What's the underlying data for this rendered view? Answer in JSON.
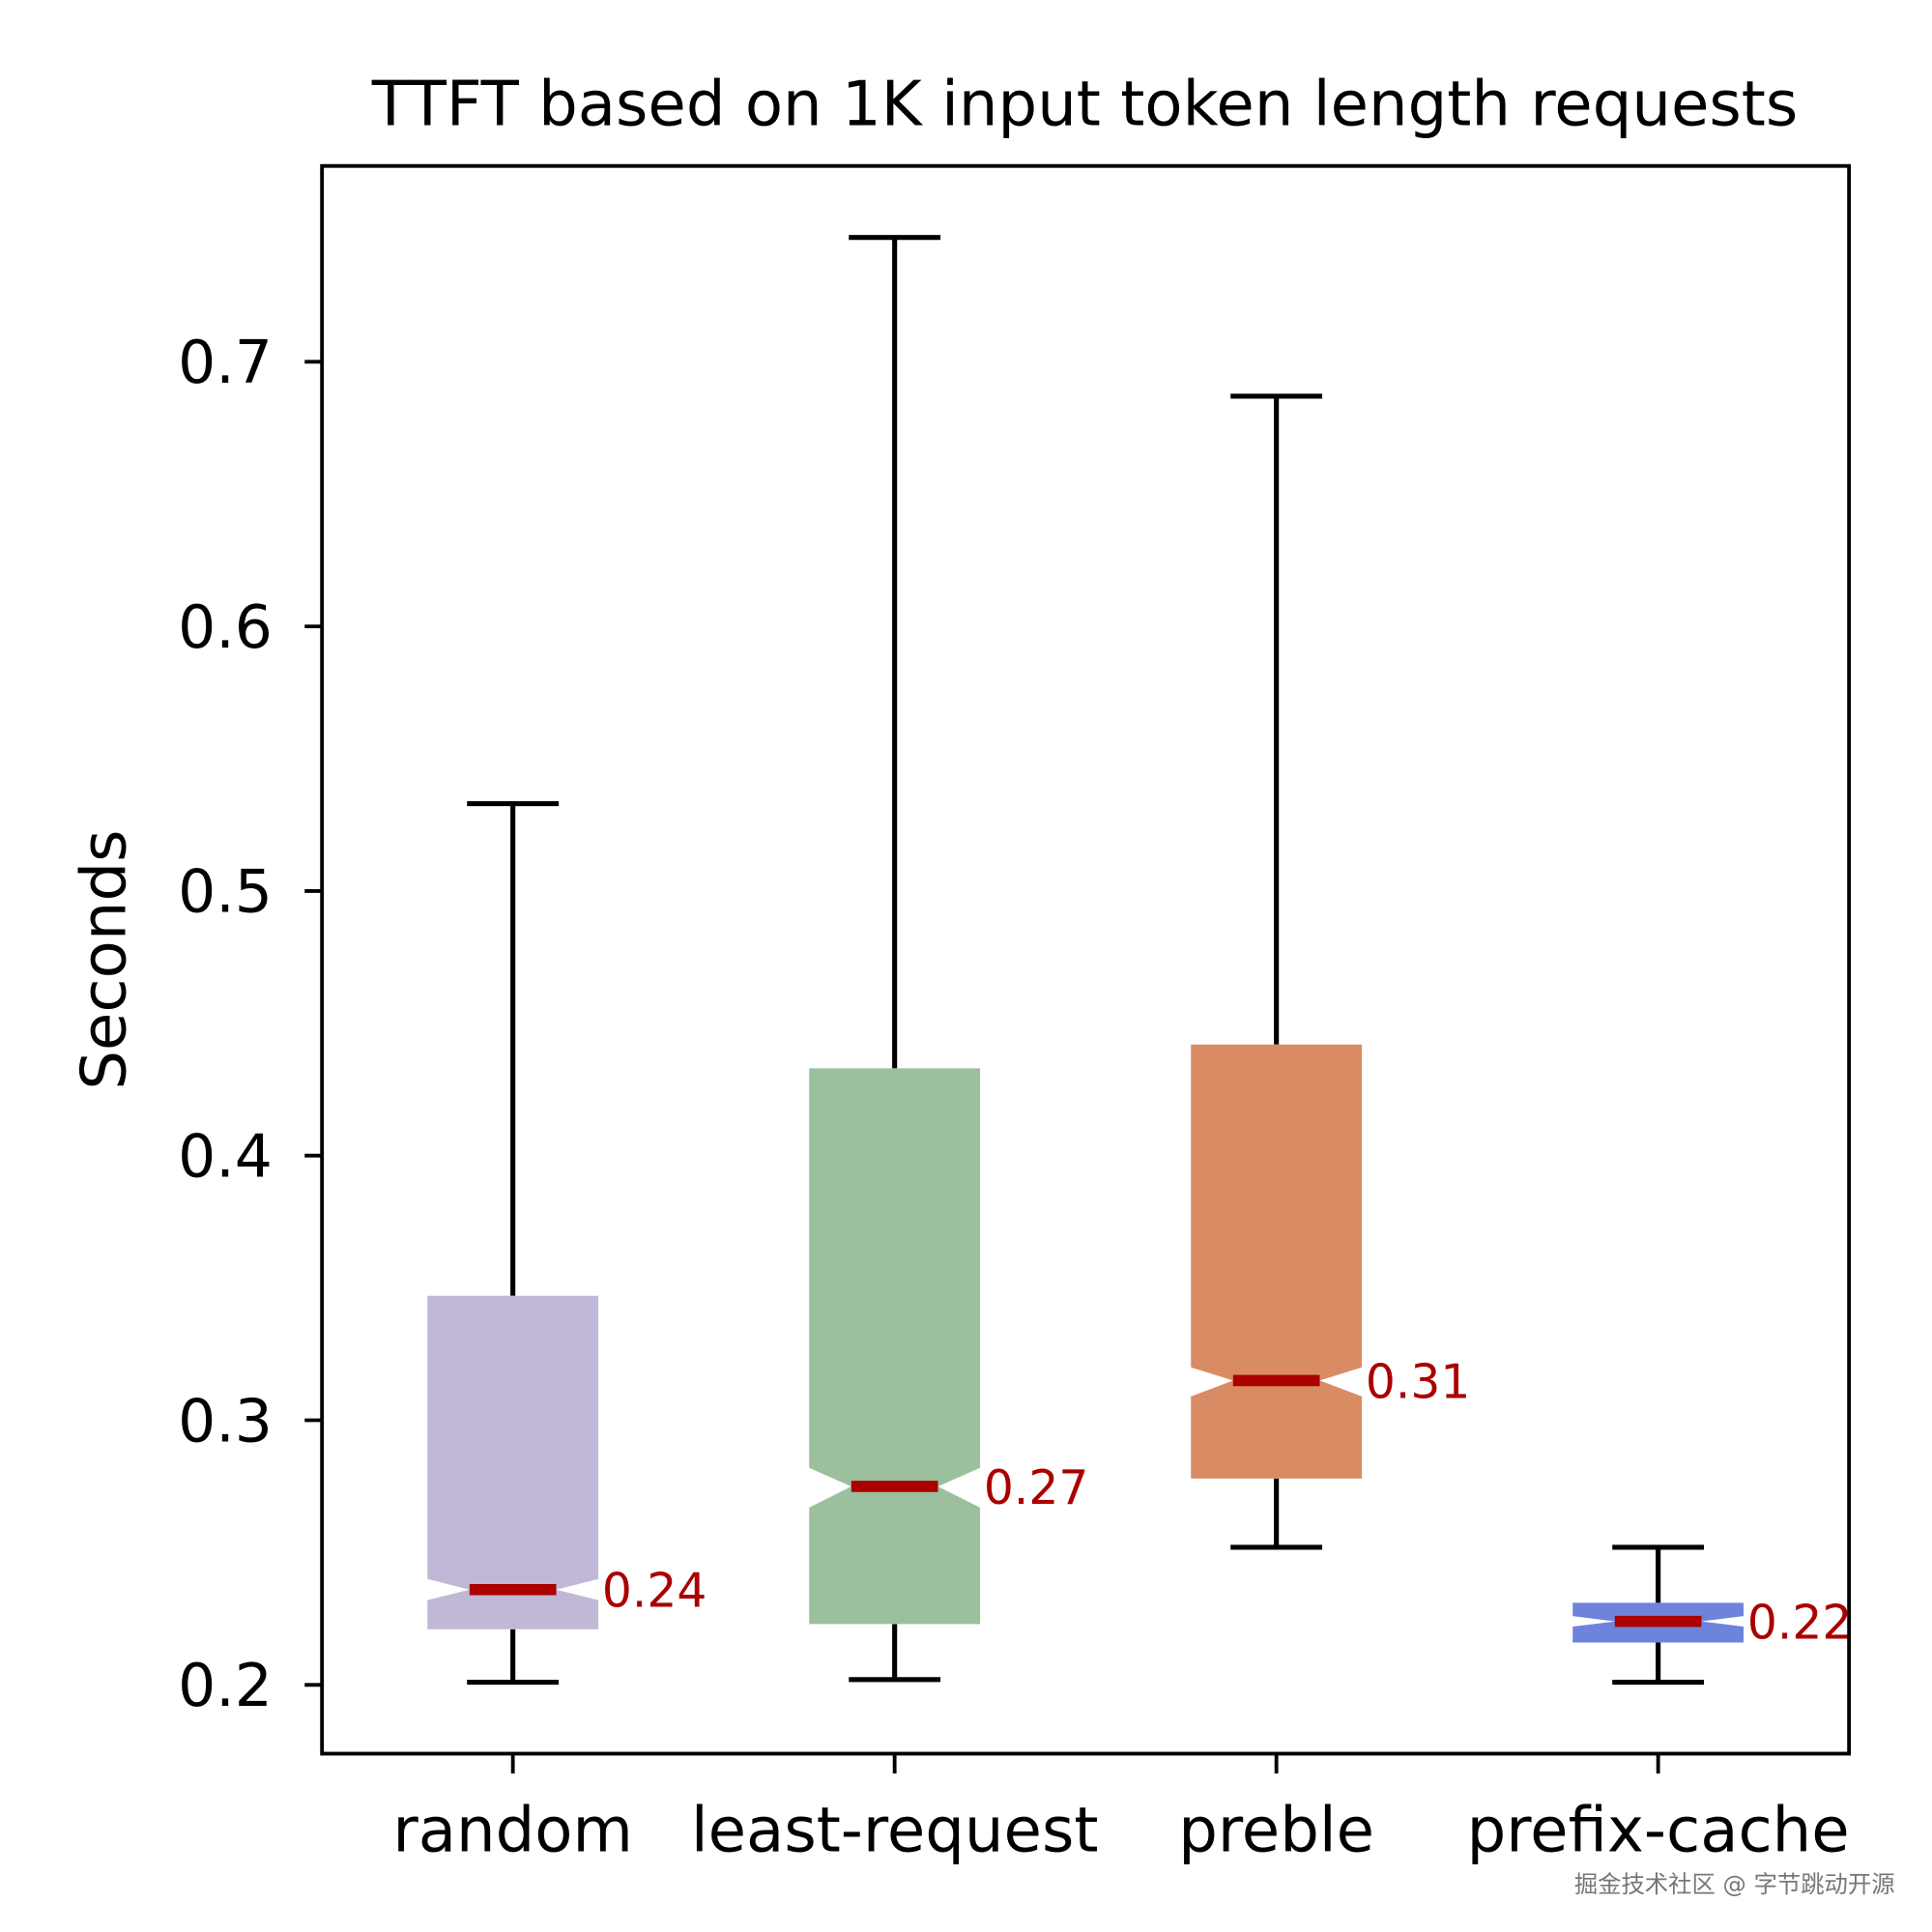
{
  "chart_data": {
    "type": "boxplot",
    "title": "TTFT based on 1K input token length requests",
    "xlabel": "",
    "ylabel": "Seconds",
    "ylim": [
      0.174,
      0.774
    ],
    "yticks": [
      0.2,
      0.3,
      0.4,
      0.5,
      0.6,
      0.7
    ],
    "ytick_labels": [
      "0.2",
      "0.3",
      "0.4",
      "0.5",
      "0.6",
      "0.7"
    ],
    "grid": false,
    "notched": true,
    "median_color": "#aa0000",
    "categories": [
      "random",
      "least-request",
      "preble",
      "prefix-cache"
    ],
    "boxes": [
      {
        "name": "random",
        "color": "#c0b8d6",
        "whisker_low": 0.201,
        "q1": 0.221,
        "median": 0.236,
        "q3": 0.347,
        "whisker_high": 0.533,
        "notch_low": 0.232,
        "notch_high": 0.24,
        "median_label": "0.24"
      },
      {
        "name": "least-request",
        "color": "#9cbf9e",
        "whisker_low": 0.202,
        "q1": 0.223,
        "median": 0.275,
        "q3": 0.433,
        "whisker_high": 0.747,
        "notch_low": 0.267,
        "notch_high": 0.282,
        "median_label": "0.27"
      },
      {
        "name": "preble",
        "color": "#d98c63",
        "whisker_low": 0.252,
        "q1": 0.278,
        "median": 0.315,
        "q3": 0.442,
        "whisker_high": 0.687,
        "notch_low": 0.309,
        "notch_high": 0.32,
        "median_label": "0.31"
      },
      {
        "name": "prefix-cache",
        "color": "#6e84dc",
        "whisker_low": 0.201,
        "q1": 0.216,
        "median": 0.224,
        "q3": 0.231,
        "whisker_high": 0.252,
        "notch_low": 0.222,
        "notch_high": 0.226,
        "median_label": "0.22"
      }
    ]
  },
  "watermark": "掘金技术社区 @ 字节跳动开源"
}
